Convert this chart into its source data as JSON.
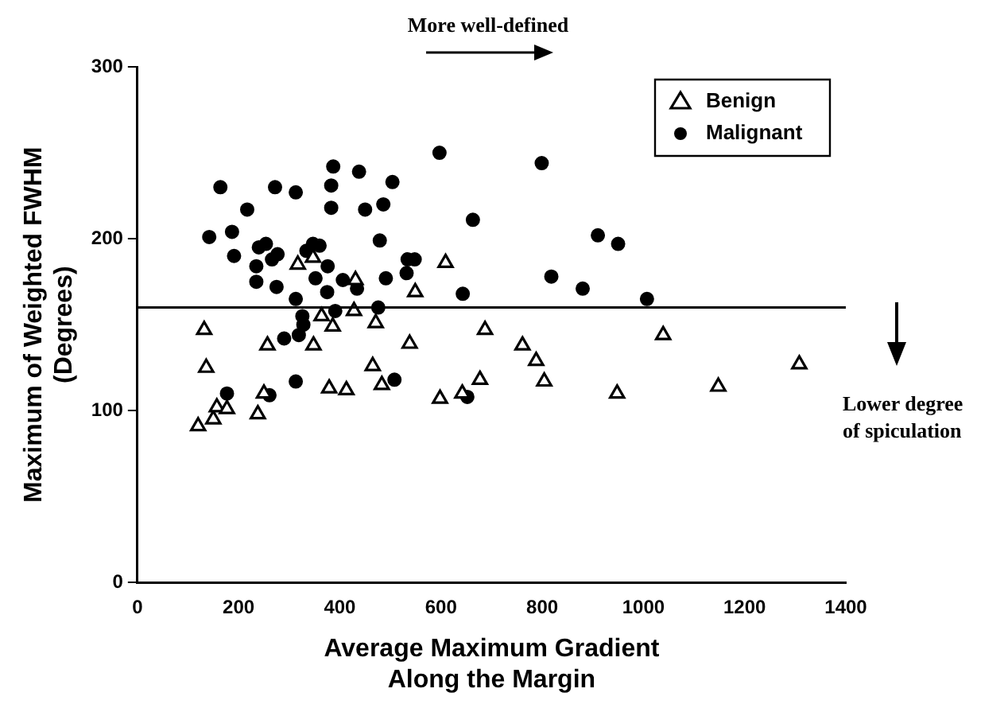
{
  "chart_data": {
    "type": "scatter",
    "xlabel": "Average Maximum Gradient\nAlong the Margin",
    "ylabel": "Maximum of Weighted FWHM\n(Degrees)",
    "xlim": [
      0,
      1400
    ],
    "xticks": [
      0,
      200,
      400,
      600,
      800,
      1000,
      1200,
      1400
    ],
    "ylim": [
      0,
      300
    ],
    "yticks": [
      0,
      100,
      200,
      300
    ],
    "grid": false,
    "legend": "top right",
    "ref_lines": [
      {
        "axis": "y",
        "value": 160,
        "color": "#000000"
      }
    ],
    "annotations": [
      "More well-defined",
      "Lower degree\nof spiculation"
    ],
    "series": [
      {
        "name": "Benign",
        "color": "#000000",
        "marker": "triangle",
        "x": [
          132,
          136,
          120,
          150,
          157,
          177,
          238,
          250,
          257,
          317,
          347,
          348,
          364,
          379,
          386,
          431,
          428,
          471,
          465,
          483,
          538,
          549,
          379,
          413,
          609,
          598,
          642,
          677,
          687,
          761,
          788,
          804,
          948,
          1039,
          1148,
          1308
        ],
        "values": [
          147,
          125,
          91,
          95,
          102,
          101,
          98,
          110,
          138,
          185,
          189,
          138,
          155,
          null,
          149,
          176,
          158,
          151,
          126,
          115,
          139,
          169,
          113,
          112,
          186,
          107,
          110,
          118,
          147,
          138,
          129,
          117,
          110,
          144,
          114,
          127
        ]
      },
      {
        "name": "Malignant",
        "color": "#000000",
        "marker": "circle",
        "x": [
          164,
          272,
          313,
          387,
          383,
          438,
          504,
          217,
          383,
          450,
          486,
          663,
          142,
          187,
          191,
          240,
          254,
          235,
          266,
          277,
          235,
          275,
          313,
          319,
          334,
          347,
          360,
          352,
          376,
          375,
          406,
          434,
          479,
          491,
          534,
          548,
          532,
          643,
          476,
          326,
          382,
          391,
          328,
          290,
          319,
          313,
          177,
          261,
          508,
          652,
          597,
          799,
          910,
          950,
          818,
          880,
          1007
        ],
        "values": [
          230,
          230,
          227,
          242,
          231,
          239,
          233,
          217,
          218,
          217,
          220,
          211,
          201,
          204,
          190,
          195,
          197,
          184,
          188,
          191,
          175,
          172,
          165,
          null,
          193,
          197,
          196,
          177,
          184,
          169,
          176,
          171,
          199,
          177,
          188,
          188,
          180,
          168,
          160,
          155,
          null,
          158,
          150,
          142,
          144,
          117,
          110,
          109,
          118,
          108,
          250,
          244,
          202,
          197,
          178,
          171,
          165
        ]
      }
    ]
  }
}
